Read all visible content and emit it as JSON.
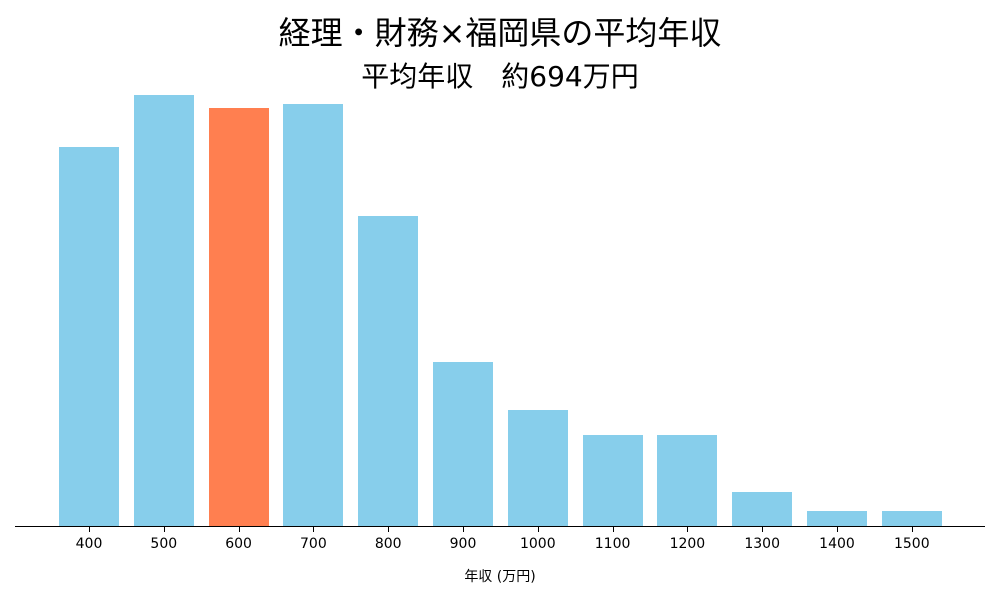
{
  "chart_data": {
    "type": "bar",
    "title": "経理・財務×福岡県の平均年収",
    "subtitle": "平均年収　約694万円",
    "xlabel": "年収 (万円)",
    "ylabel": "",
    "categories": [
      "400",
      "500",
      "600",
      "700",
      "800",
      "900",
      "1000",
      "1100",
      "1200",
      "1300",
      "1400",
      "1500"
    ],
    "values": [
      88,
      100,
      97,
      98,
      72,
      38,
      27,
      21,
      21,
      8,
      3.5,
      3.5
    ],
    "value_unit": "relative frequency (% of max bar, read from pixel heights)",
    "highlight_category": "600",
    "colors": {
      "bar": "#87CEEB",
      "highlight": "#FF7F50",
      "axis": "#000000"
    },
    "grid": false,
    "yaxis_visible": false
  }
}
